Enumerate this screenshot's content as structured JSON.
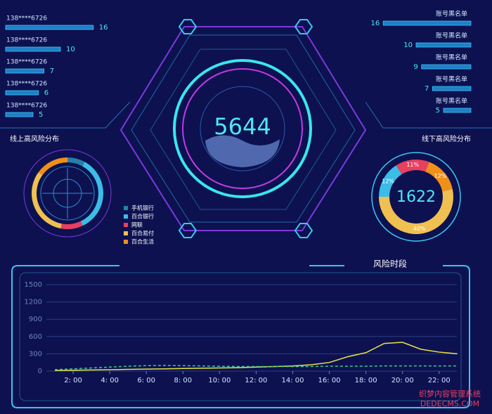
{
  "left_list": [
    {
      "label": "138****6726",
      "value": 16
    },
    {
      "label": "138****6726",
      "value": 10
    },
    {
      "label": "138****6726",
      "value": 7
    },
    {
      "label": "138****6726",
      "value": 6
    },
    {
      "label": "138****6726",
      "value": 5
    }
  ],
  "right_list": [
    {
      "label": "账号黑名单",
      "value": 16
    },
    {
      "label": "账号黑名单",
      "value": 10
    },
    {
      "label": "账号黑名单",
      "value": 9
    },
    {
      "label": "账号黑名单",
      "value": 7
    },
    {
      "label": "账号黑名单",
      "value": 5
    }
  ],
  "center": {
    "value": 5644
  },
  "watermark": {
    "line1": "织梦内容管理系统",
    "line2": "DEDECMS.COM"
  },
  "chart_data": [
    {
      "type": "pie",
      "title": "线上高风险分布",
      "categories": [
        "手机银行",
        "百合银行",
        "网联",
        "百合易付",
        "百合生活"
      ],
      "values": [
        8,
        35,
        10,
        32,
        15
      ],
      "colors": [
        "#2a7fa8",
        "#3bbde8",
        "#e8405f",
        "#f0c050",
        "#f0901a"
      ]
    },
    {
      "type": "pie",
      "title": "线下高风险分布",
      "total": 1622,
      "values": [
        12,
        11,
        12,
        40
      ],
      "value_labels": [
        "12%",
        "11%",
        "12%",
        "40%"
      ],
      "colors": [
        "#3bbde8",
        "#e8405f",
        "#f0901a",
        "#f0c050"
      ]
    },
    {
      "type": "line",
      "title": "风险时段",
      "x": [
        1,
        2,
        3,
        4,
        5,
        6,
        7,
        8,
        9,
        10,
        11,
        12,
        13,
        14,
        15,
        16,
        17,
        18,
        19,
        20,
        21,
        22,
        23
      ],
      "xlim": [
        0,
        23.2
      ],
      "xticks": [
        {
          "value": 2,
          "label": "2: 00"
        },
        {
          "value": 4,
          "label": "4: 00"
        },
        {
          "value": 6,
          "label": "6: 00"
        },
        {
          "value": 8,
          "label": "8: 00"
        },
        {
          "value": 10,
          "label": "10: 00"
        },
        {
          "value": 12,
          "label": "12: 00"
        },
        {
          "value": 14,
          "label": "14: 00"
        },
        {
          "value": 16,
          "label": "16: 00"
        },
        {
          "value": 18,
          "label": "18: 00"
        },
        {
          "value": 20,
          "label": "20: 00"
        },
        {
          "value": 22,
          "label": "22: 00"
        }
      ],
      "ylim": [
        0,
        1500
      ],
      "yticks": [
        0,
        300,
        600,
        900,
        1200,
        1500
      ],
      "grid": true,
      "series": [
        {
          "color": "#e8e640",
          "dash": false,
          "values": [
            10,
            15,
            20,
            25,
            30,
            35,
            40,
            45,
            50,
            55,
            60,
            70,
            80,
            90,
            110,
            150,
            250,
            320,
            480,
            500,
            380,
            330,
            300
          ]
        },
        {
          "color": "#3fc98a",
          "dash": true,
          "values": [
            25,
            40,
            55,
            70,
            85,
            95,
            100,
            95,
            90,
            85,
            80,
            80,
            80,
            80,
            80,
            85,
            85,
            85,
            90,
            90,
            90,
            90,
            90
          ]
        }
      ]
    }
  ]
}
